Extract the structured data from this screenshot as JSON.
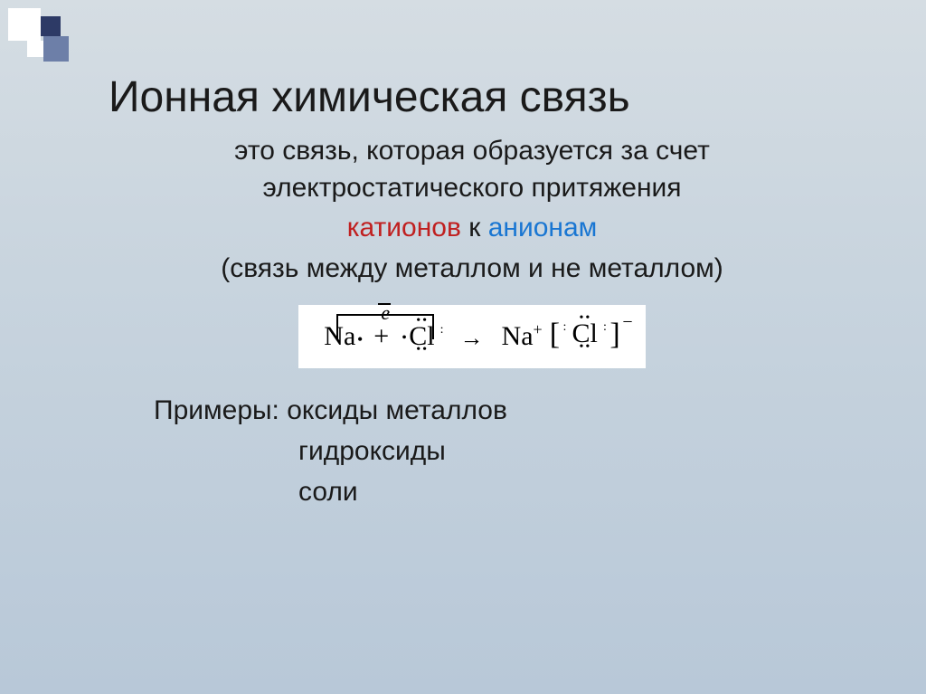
{
  "decoration": {
    "colors": {
      "white": "#ffffff",
      "navy": "#2d3a66",
      "blue": "#6d7fa8"
    }
  },
  "background": {
    "gradient_top": "#d5dde3",
    "gradient_mid": "#c8d4de",
    "gradient_bot": "#b8c8d8"
  },
  "title": "Ионная химическая связь",
  "definition": {
    "line1": "это связь, которая образуется за счет",
    "line2": "электростатического притяжения",
    "cation": "катионов",
    "to": " к ",
    "anion": "анионам",
    "cation_color": "#c02020",
    "anion_color": "#1976d2",
    "paren": "(связь между металлом и не металлом)"
  },
  "formula": {
    "background": "#ffffff",
    "electron_symbol": "e",
    "na": "Na",
    "plus_op": "+",
    "cl": "Cl",
    "arrow": "→",
    "na_ion": "Na",
    "na_charge": "+",
    "product_charge": "−",
    "dot": "•",
    "double_dot": "••",
    "colon": ":",
    "lbracket": "[",
    "rbracket": "]"
  },
  "examples": {
    "label": "Примеры:",
    "item1": "оксиды металлов",
    "item2": "гидроксиды",
    "item3": "соли"
  },
  "typography": {
    "title_fontsize": 48,
    "body_fontsize": 30,
    "formula_fontsize": 30,
    "font_family_body": "Arial",
    "font_family_formula": "Times New Roman",
    "text_color": "#1a1a1a"
  }
}
